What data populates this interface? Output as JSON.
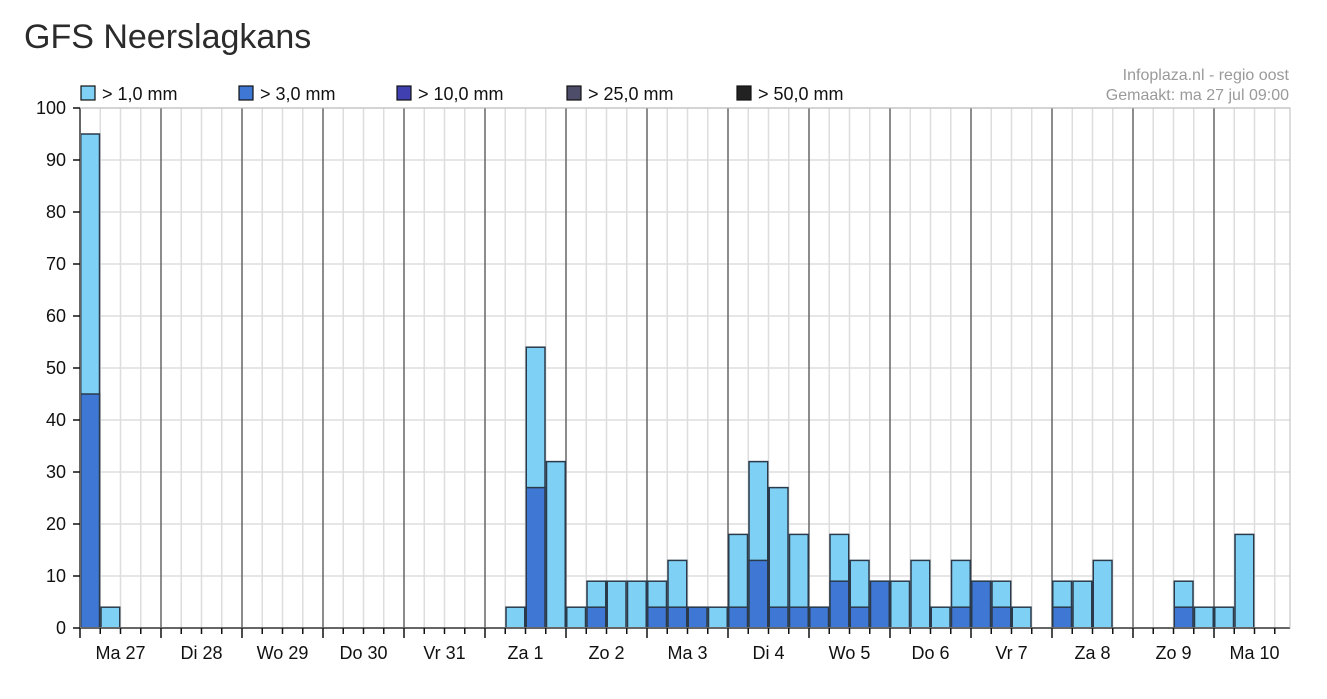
{
  "page": {
    "title": "GFS Neerslagkans"
  },
  "credit": {
    "line1": "Infoplaza.nl - regio oost",
    "line2": "Gemaakt: ma 27 jul 09:00"
  },
  "chart_data": {
    "type": "bar",
    "stacked": false,
    "grid": true,
    "legend_position": "top",
    "ylim": [
      0,
      100
    ],
    "y_ticks": [
      0,
      10,
      20,
      30,
      40,
      50,
      60,
      70,
      80,
      90,
      100
    ],
    "slot_hours": 6,
    "day_labels": [
      "Ma 27",
      "Di 28",
      "Wo 29",
      "Do 30",
      "Vr 31",
      "Za 1",
      "Zo 2",
      "Ma 3",
      "Di 4",
      "Wo 5",
      "Do 6",
      "Vr 7",
      "Za 8",
      "Zo 9",
      "Ma 10"
    ],
    "series": [
      {
        "name": "> 1,0 mm",
        "color": "#7fd0f5",
        "values": [
          95,
          4,
          0,
          0,
          0,
          0,
          0,
          0,
          0,
          0,
          0,
          0,
          0,
          0,
          0,
          0,
          0,
          0,
          0,
          0,
          0,
          4,
          54,
          32,
          4,
          9,
          9,
          9,
          9,
          13,
          4,
          4,
          18,
          32,
          27,
          18,
          4,
          18,
          13,
          9,
          9,
          13,
          4,
          13,
          9,
          9,
          4,
          0,
          9,
          9,
          13,
          0,
          0,
          0,
          9,
          4,
          4,
          18
        ]
      },
      {
        "name": "> 3,0 mm",
        "color": "#3f78d4",
        "values": [
          45,
          0,
          0,
          0,
          0,
          0,
          0,
          0,
          0,
          0,
          0,
          0,
          0,
          0,
          0,
          0,
          0,
          0,
          0,
          0,
          0,
          0,
          27,
          0,
          0,
          4,
          0,
          0,
          4,
          4,
          4,
          0,
          4,
          13,
          4,
          4,
          4,
          9,
          4,
          9,
          0,
          0,
          0,
          4,
          9,
          4,
          0,
          0,
          4,
          0,
          0,
          0,
          0,
          0,
          4,
          0,
          0,
          0
        ]
      },
      {
        "name": "> 10,0 mm",
        "color": "#4040b0",
        "values": []
      },
      {
        "name": "> 25,0 mm",
        "color": "#4d4d6a",
        "values": []
      },
      {
        "name": "> 50,0 mm",
        "color": "#222222",
        "values": []
      }
    ]
  }
}
